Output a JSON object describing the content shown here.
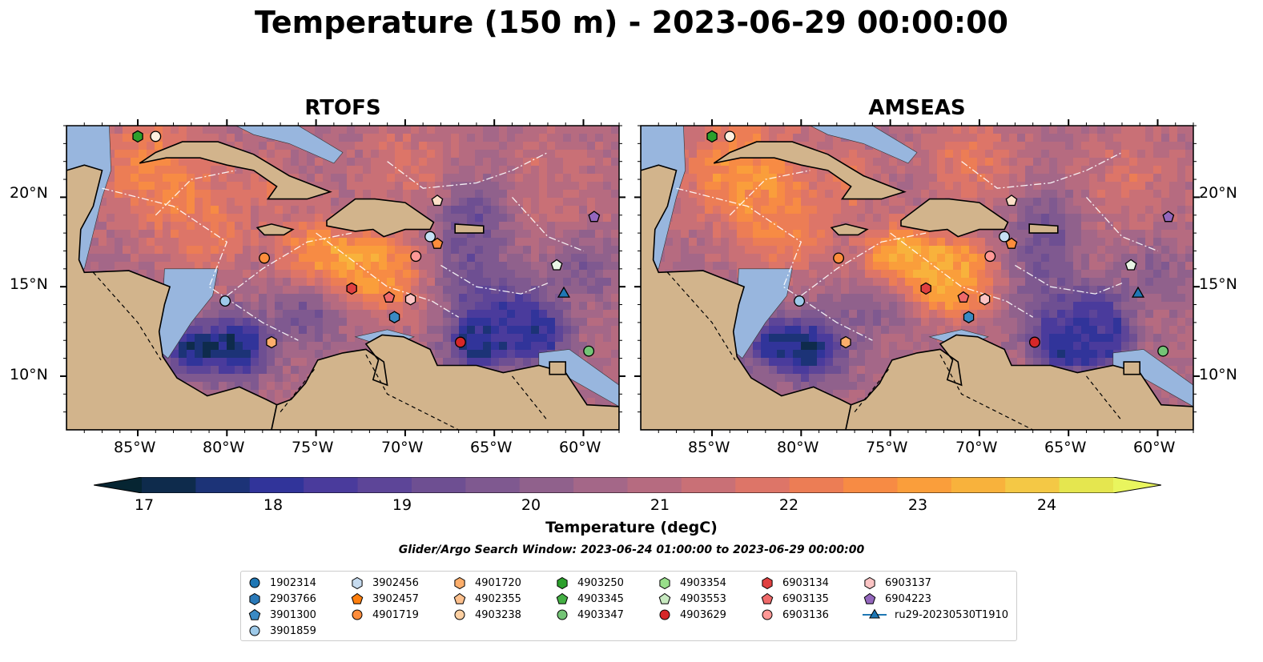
{
  "title": "Temperature (150 m) - 2023-06-29 00:00:00",
  "panels": [
    {
      "id": "rtofs",
      "title": "RTOFS",
      "y_ticks_left": [
        "20°N",
        "15°N",
        "10°N"
      ],
      "x_ticks": [
        "85°W",
        "80°W",
        "75°W",
        "70°W",
        "65°W",
        "60°W"
      ]
    },
    {
      "id": "amseas",
      "title": "AMSEAS",
      "y_ticks_right": [
        "20°N",
        "15°N",
        "10°N"
      ],
      "x_ticks": [
        "85°W",
        "80°W",
        "75°W",
        "70°W",
        "65°W",
        "60°W"
      ]
    }
  ],
  "map_extent": {
    "lon": [
      -89,
      -58
    ],
    "lat": [
      7,
      24
    ]
  },
  "colorbar": {
    "label": "Temperature (degC)",
    "ticks": [
      "17",
      "18",
      "19",
      "20",
      "21",
      "22",
      "23",
      "24"
    ],
    "range": [
      17,
      24.5
    ],
    "step": 0.5,
    "extend": "both",
    "colormap": "thermal",
    "colors": [
      "#062532",
      "#0e2b4c",
      "#1c3377",
      "#31349a",
      "#4a3b9c",
      "#5d4598",
      "#6e4f92",
      "#7f5990",
      "#90618c",
      "#a46788",
      "#b66b80",
      "#c97076",
      "#dd7568",
      "#ec7d55",
      "#f78b44",
      "#fa9e3b",
      "#f8b23c",
      "#f4c845",
      "#e5e64f",
      "#e9f55e"
    ]
  },
  "search_window": "Glider/Argo Search Window: 2023-06-24 01:00:00 to 2023-06-29 00:00:00",
  "land_color": "#d2b48c",
  "shelf_color": "#98b6de",
  "legend": [
    {
      "label": "1902314",
      "marker": "circle",
      "color": "#1f77b4"
    },
    {
      "label": "2903766",
      "marker": "hexagon",
      "color": "#2a79b8"
    },
    {
      "label": "3901300",
      "marker": "pentagon",
      "color": "#3a8ac4"
    },
    {
      "label": "3901859",
      "marker": "circle",
      "color": "#9ecae9"
    },
    {
      "label": "3902456",
      "marker": "hexagon",
      "color": "#c6dbef"
    },
    {
      "label": "3902457",
      "marker": "pentagon",
      "color": "#ff7f0e"
    },
    {
      "label": "4901719",
      "marker": "circle",
      "color": "#fd8d3c"
    },
    {
      "label": "4901720",
      "marker": "hexagon",
      "color": "#fdae6b"
    },
    {
      "label": "4902355",
      "marker": "pentagon",
      "color": "#fdc08d"
    },
    {
      "label": "4903238",
      "marker": "circle",
      "color": "#fdd0a2"
    },
    {
      "label": "4903250",
      "marker": "hexagon",
      "color": "#2ca02c"
    },
    {
      "label": "4903345",
      "marker": "pentagon",
      "color": "#44b044"
    },
    {
      "label": "4903347",
      "marker": "circle",
      "color": "#74c476"
    },
    {
      "label": "4903354",
      "marker": "hexagon",
      "color": "#98df8a"
    },
    {
      "label": "4903553",
      "marker": "pentagon",
      "color": "#c7e9c0"
    },
    {
      "label": "4903629",
      "marker": "circle",
      "color": "#d62728"
    },
    {
      "label": "6903134",
      "marker": "hexagon",
      "color": "#e04040"
    },
    {
      "label": "6903135",
      "marker": "pentagon",
      "color": "#ef6a6a"
    },
    {
      "label": "6903136",
      "marker": "circle",
      "color": "#ff9896"
    },
    {
      "label": "6903137",
      "marker": "hexagon",
      "color": "#fbc4c4"
    },
    {
      "label": "6904223",
      "marker": "pentagon",
      "color": "#9467bd"
    },
    {
      "label": "ru29-20230530T1910",
      "marker": "triangle-line",
      "color": "#1f77b4"
    }
  ],
  "platforms": [
    {
      "label": "4903250",
      "marker": "hexagon",
      "color": "#2ca02c",
      "lon": -85.0,
      "lat": 23.4
    },
    {
      "label": "4903238",
      "marker": "circle",
      "color": "#fff0e0",
      "lon": -84.0,
      "lat": 23.4
    },
    {
      "label": "4902355",
      "marker": "pentagon",
      "color": "#fde0c8",
      "lon": -68.2,
      "lat": 19.8
    },
    {
      "label": "6904223",
      "marker": "pentagon",
      "color": "#9467bd",
      "lon": -59.4,
      "lat": 18.9
    },
    {
      "label": "3901859",
      "marker": "circle",
      "color": "#c6e0f5",
      "lon": -68.6,
      "lat": 17.8
    },
    {
      "label": "3902457",
      "marker": "pentagon",
      "color": "#fd8d3c",
      "lon": -68.2,
      "lat": 17.4
    },
    {
      "label": "4901719",
      "marker": "circle",
      "color": "#fd8d3c",
      "lon": -77.9,
      "lat": 16.6
    },
    {
      "label": "6903136",
      "marker": "circle",
      "color": "#ff9896",
      "lon": -69.4,
      "lat": 16.7
    },
    {
      "label": "4903553",
      "marker": "pentagon",
      "color": "#e9f5e5",
      "lon": -61.5,
      "lat": 16.2
    },
    {
      "label": "6903134",
      "marker": "hexagon",
      "color": "#e04040",
      "lon": -73.0,
      "lat": 14.9
    },
    {
      "label": "6903135",
      "marker": "pentagon",
      "color": "#ef6a6a",
      "lon": -70.9,
      "lat": 14.4
    },
    {
      "label": "6903137",
      "marker": "hexagon",
      "color": "#fbc4c4",
      "lon": -69.7,
      "lat": 14.3
    },
    {
      "label": "3901859",
      "marker": "circle",
      "color": "#9ecae9",
      "lon": -80.1,
      "lat": 14.2
    },
    {
      "label": "2903766",
      "marker": "hexagon",
      "color": "#3a8ac4",
      "lon": -70.6,
      "lat": 13.3
    },
    {
      "label": "4901720",
      "marker": "hexagon",
      "color": "#fdae6b",
      "lon": -77.5,
      "lat": 11.9
    },
    {
      "label": "4903629",
      "marker": "circle",
      "color": "#d62728",
      "lon": -66.9,
      "lat": 11.9
    },
    {
      "label": "4903347",
      "marker": "circle",
      "color": "#74c476",
      "lon": -59.7,
      "lat": 11.4
    },
    {
      "label": "ru29-20230530T1910",
      "marker": "triangle",
      "color": "#1f77b4",
      "lon": -61.1,
      "lat": 14.6
    }
  ]
}
